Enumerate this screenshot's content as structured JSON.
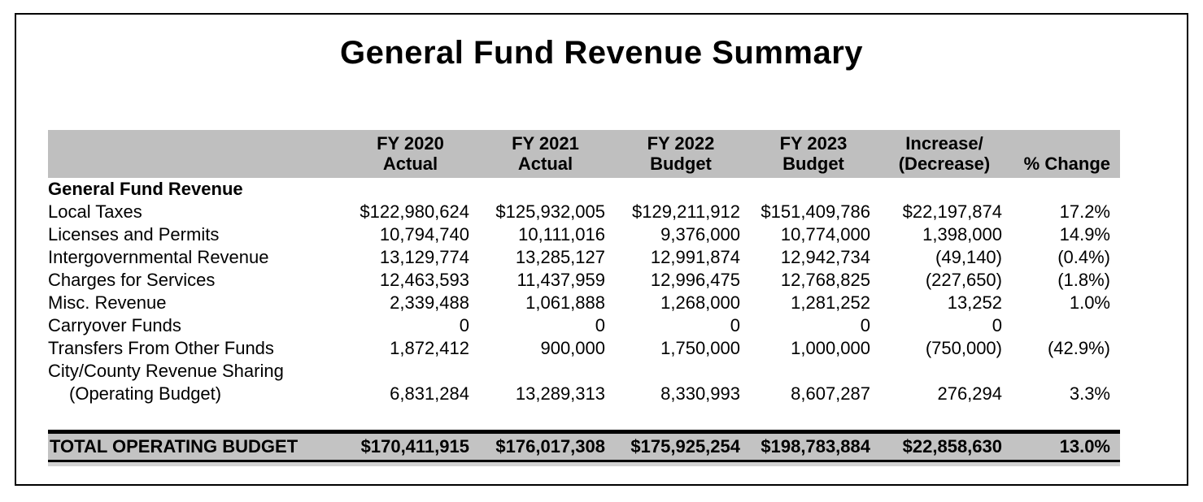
{
  "title": "General Fund Revenue Summary",
  "table": {
    "headers": [
      {
        "line1": "",
        "line2": ""
      },
      {
        "line1": "FY 2020",
        "line2": "Actual"
      },
      {
        "line1": "FY 2021",
        "line2": "Actual"
      },
      {
        "line1": "FY 2022",
        "line2": "Budget"
      },
      {
        "line1": "FY 2023",
        "line2": "Budget"
      },
      {
        "line1": "Increase/",
        "line2": "(Decrease)"
      },
      {
        "line1": "",
        "line2": "% Change"
      }
    ],
    "section_label": "General Fund Revenue",
    "rows": [
      {
        "label": "Local Taxes",
        "values": [
          "$122,980,624",
          "$125,932,005",
          "$129,211,912",
          "$151,409,786",
          "$22,197,874",
          "17.2%"
        ]
      },
      {
        "label": "Licenses and Permits",
        "values": [
          "10,794,740",
          "10,111,016",
          "9,376,000",
          "10,774,000",
          "1,398,000",
          "14.9%"
        ]
      },
      {
        "label": "Intergovernmental Revenue",
        "values": [
          "13,129,774",
          "13,285,127",
          "12,991,874",
          "12,942,734",
          "(49,140)",
          "(0.4%)"
        ]
      },
      {
        "label": "Charges for Services",
        "values": [
          "12,463,593",
          "11,437,959",
          "12,996,475",
          "12,768,825",
          "(227,650)",
          "(1.8%)"
        ]
      },
      {
        "label": "Misc. Revenue",
        "values": [
          "2,339,488",
          "1,061,888",
          "1,268,000",
          "1,281,252",
          "13,252",
          "1.0%"
        ]
      },
      {
        "label": "Carryover Funds",
        "values": [
          "0",
          "0",
          "0",
          "0",
          "0",
          ""
        ]
      },
      {
        "label": "Transfers From Other Funds",
        "values": [
          "1,872,412",
          "900,000",
          "1,750,000",
          "1,000,000",
          "(750,000)",
          "(42.9%)"
        ]
      },
      {
        "label": "City/County Revenue Sharing",
        "values": [
          "",
          "",
          "",
          "",
          "",
          ""
        ]
      },
      {
        "label": "(Operating Budget)",
        "indent": true,
        "values": [
          "6,831,284",
          "13,289,313",
          "8,330,993",
          "8,607,287",
          "276,294",
          "3.3%"
        ]
      }
    ],
    "total": {
      "label": "TOTAL OPERATING BUDGET",
      "values": [
        "$170,411,915",
        "$176,017,308",
        "$175,925,254",
        "$198,783,884",
        "$22,858,630",
        "13.0%"
      ]
    }
  },
  "colors": {
    "header_bg": "#bfbfbf",
    "total_bg": "#c3c3c3",
    "total_underline": "#d2d2d2",
    "border": "#000000",
    "text": "#000000"
  }
}
